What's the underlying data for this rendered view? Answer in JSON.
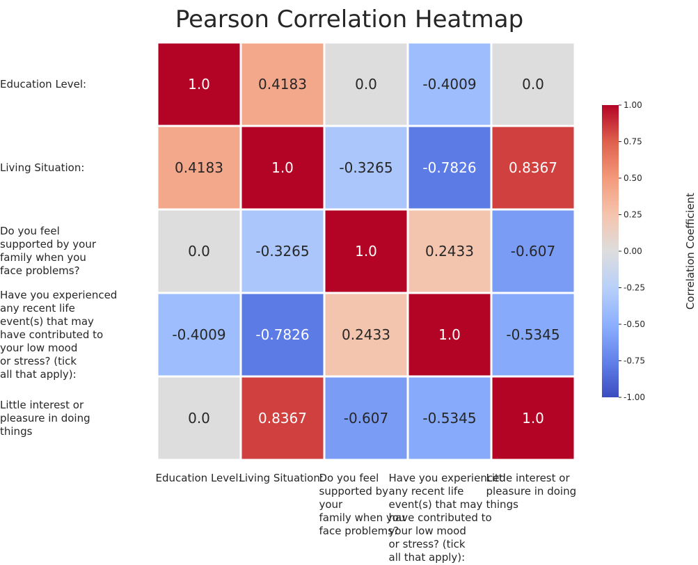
{
  "chart_data": {
    "type": "heatmap",
    "title": "Pearson Correlation Heatmap",
    "row_labels": [
      "Education Level:",
      "Living Situation:",
      "Do you feel supported by your family when you face problems?",
      "Have you experienced any recent life event(s) that may have contributed to your low mood or stress? (tick all that apply):",
      "Little interest or pleasure in doing things"
    ],
    "row_label_lines": [
      [
        "Education Level:"
      ],
      [
        "Living Situation:"
      ],
      [
        "Do you feel",
        "supported by your",
        "family when you",
        "face problems?"
      ],
      [
        "Have you experienced",
        "any recent life",
        "event(s) that may",
        "have contributed to",
        "your low mood",
        "or stress? (tick",
        "all that apply):"
      ],
      [
        "Little interest or",
        "pleasure in doing",
        "things"
      ]
    ],
    "col_labels": [
      "Education Level:",
      "Living Situation:",
      "Do you feel supported by your family when you face problems?",
      "Have you experienced any recent life event(s) that may have contributed to your low mood or stress? (tick all that apply):",
      "Little interest or pleasure in doing things"
    ],
    "col_label_lines": [
      [
        "Education Level:"
      ],
      [
        "Living Situation:"
      ],
      [
        "Do you feel",
        "supported by your",
        "family when you",
        "face problems?"
      ],
      [
        "Have you experienced",
        "any recent life",
        "event(s) that may",
        "have contributed to",
        "your low mood",
        "or stress? (tick",
        "all that apply):"
      ],
      [
        "Little interest or",
        "pleasure in doing",
        "things"
      ]
    ],
    "values": [
      [
        1.0,
        0.4183,
        0.0,
        -0.4009,
        0.0
      ],
      [
        0.4183,
        1.0,
        -0.3265,
        -0.7826,
        0.8367
      ],
      [
        0.0,
        -0.3265,
        1.0,
        0.2433,
        -0.607
      ],
      [
        -0.4009,
        -0.7826,
        0.2433,
        1.0,
        -0.5345
      ],
      [
        0.0,
        0.8367,
        -0.607,
        -0.5345,
        1.0
      ]
    ],
    "annotations": [
      [
        "1.0",
        "0.4183",
        "0.0",
        "-0.4009",
        "0.0"
      ],
      [
        "0.4183",
        "1.0",
        "-0.3265",
        "-0.7826",
        "0.8367"
      ],
      [
        "0.0",
        "-0.3265",
        "1.0",
        "0.2433",
        "-0.607"
      ],
      [
        "-0.4009",
        "-0.7826",
        "0.2433",
        "1.0",
        "-0.5345"
      ],
      [
        "0.0",
        "0.8367",
        "-0.607",
        "-0.5345",
        "1.0"
      ]
    ],
    "colormap": "coolwarm",
    "vmin": -1.0,
    "vmax": 1.0,
    "colorbar": {
      "label": "Correlation Coefficient",
      "ticks": [
        1.0,
        0.75,
        0.5,
        0.25,
        0.0,
        -0.25,
        -0.5,
        -0.75,
        -1.0
      ],
      "tick_labels": [
        "1.00",
        "0.75",
        "0.50",
        "0.25",
        "0.00",
        "-0.25",
        "-0.50",
        "-0.75",
        "-1.00"
      ]
    }
  }
}
